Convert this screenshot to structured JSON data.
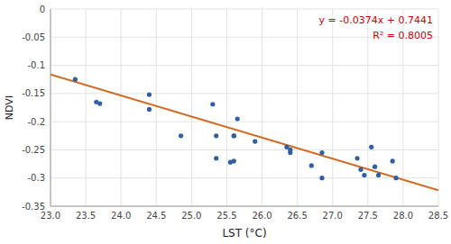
{
  "chart_data": {
    "type": "scatter",
    "x_label": "LST (°C)",
    "y_label": "NDVI",
    "series": [
      {
        "type": "scatter",
        "color": "#2E5FA3",
        "marker": "circle",
        "x": [
          23.35,
          23.65,
          23.7,
          24.4,
          24.4,
          24.85,
          25.3,
          25.35,
          25.35,
          25.55,
          25.6,
          25.6,
          25.6,
          25.65,
          25.9,
          26.35,
          26.4,
          26.4,
          26.7,
          26.85,
          26.85,
          27.35,
          27.4,
          27.45,
          27.55,
          27.6,
          27.65,
          27.85,
          27.9
        ],
        "values": [
          -0.125,
          -0.165,
          -0.168,
          -0.152,
          -0.178,
          -0.225,
          -0.169,
          -0.225,
          -0.265,
          -0.272,
          -0.225,
          -0.225,
          -0.27,
          -0.195,
          -0.235,
          -0.245,
          -0.255,
          -0.25,
          -0.278,
          -0.255,
          -0.3,
          -0.265,
          -0.285,
          -0.295,
          -0.245,
          -0.28,
          -0.295,
          -0.27,
          -0.3
        ]
      },
      {
        "type": "line",
        "color": "#D2691E",
        "line_style": "solid",
        "x": [
          23.0,
          28.5
        ],
        "values": [
          -0.1161,
          -0.3218
        ]
      }
    ],
    "annotations": [
      {
        "text": "y = -0.0374x + 0.7441",
        "color": "#CC0000"
      },
      {
        "text": "R² = 0.8005",
        "color": "#CC0000"
      }
    ],
    "xlim": [
      23.0,
      28.5
    ],
    "ylim": [
      -0.35,
      0.0
    ],
    "xticks": [
      {
        "value": 23.0,
        "label": "23.0"
      },
      {
        "value": 23.5,
        "label": "23.5"
      },
      {
        "value": 24.0,
        "label": "24.0"
      },
      {
        "value": 24.5,
        "label": "24.5"
      },
      {
        "value": 25.0,
        "label": "25.0"
      },
      {
        "value": 25.5,
        "label": "25.5"
      },
      {
        "value": 26.0,
        "label": "26.0"
      },
      {
        "value": 26.5,
        "label": "26.5"
      },
      {
        "value": 27.0,
        "label": "27.0"
      },
      {
        "value": 27.5,
        "label": "27.5"
      },
      {
        "value": 28.0,
        "label": "28.0"
      },
      {
        "value": 28.5,
        "label": "28.5"
      }
    ],
    "yticks": [
      0,
      -0.05,
      -0.1,
      -0.15,
      -0.2,
      -0.25,
      -0.3,
      -0.35
    ],
    "grid": true
  }
}
